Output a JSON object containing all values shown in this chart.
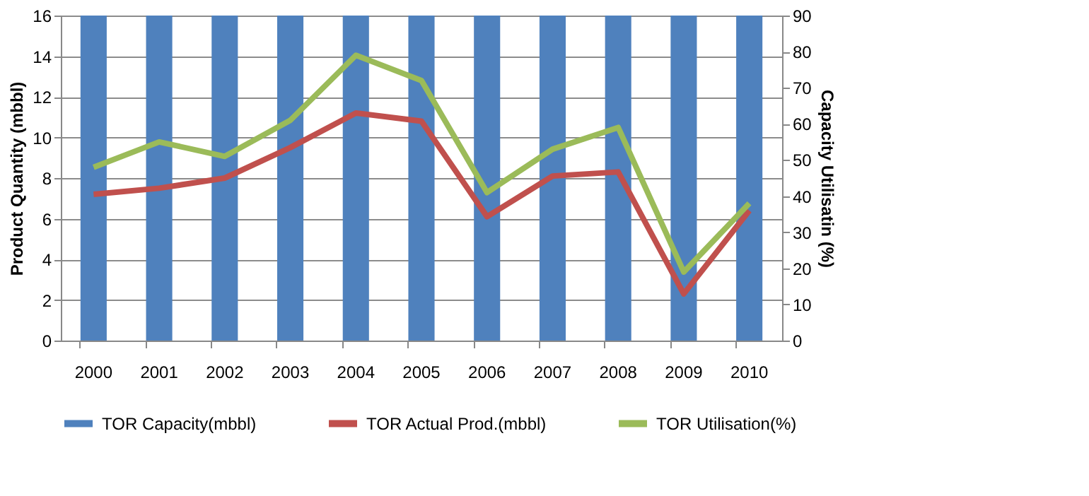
{
  "chart_data": {
    "type": "bar",
    "ylabel": "Product Quantity (mbbl)",
    "y2label": "Capacity Utilisatin (%)",
    "categories": [
      "2000",
      "2001",
      "2002",
      "2003",
      "2004",
      "2005",
      "2006",
      "2007",
      "2008",
      "2009",
      "2010"
    ],
    "series": [
      {
        "name": "TOR Capacity(mbbl)",
        "color": "#4f81bd",
        "values": [
          16,
          16,
          16,
          16,
          16,
          16,
          16,
          16,
          16,
          16,
          16
        ]
      },
      {
        "name": "TOR Actual Prod.(mbbl)",
        "type": "line",
        "color": "#c0504d",
        "values": [
          7.2,
          7.5,
          8.0,
          9.5,
          11.2,
          10.8,
          6.1,
          8.1,
          8.3,
          2.3,
          6.4
        ]
      },
      {
        "name": "TOR Utilisation(%)",
        "type": "line",
        "axis": "y2",
        "color": "#9bbb59",
        "values": [
          48,
          55,
          51,
          61,
          79,
          72,
          41,
          53,
          59,
          19,
          38
        ]
      }
    ],
    "ylim": [
      0,
      16
    ],
    "yticks": [
      0,
      2,
      4,
      6,
      8,
      10,
      12,
      14,
      16
    ],
    "y2lim": [
      0,
      90
    ],
    "y2ticks": [
      0,
      10,
      20,
      30,
      40,
      50,
      60,
      70,
      80,
      90
    ],
    "grid": true,
    "legend": "bottom",
    "line_style": "solid",
    "marker": "none"
  }
}
